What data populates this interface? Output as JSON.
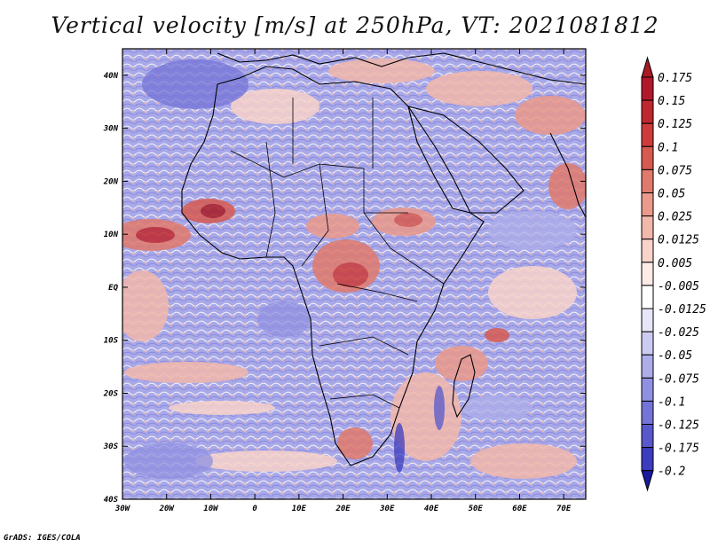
{
  "title": "Vertical velocity [m/s] at 250hPa, VT: 2021081812",
  "footer": "GrADS: IGES/COLA",
  "map": {
    "type": "filled-contour-map",
    "variable": "Vertical velocity",
    "units": "m/s",
    "level": "250hPa",
    "valid_time": "2021081812",
    "lat_range": [
      -40,
      45
    ],
    "lon_range": [
      -30,
      75
    ],
    "lat_ticks": [
      "40N",
      "30N",
      "20N",
      "10N",
      "EQ",
      "10S",
      "20S",
      "30S",
      "40S"
    ],
    "lon_ticks": [
      "30W",
      "20W",
      "10W",
      "0",
      "10E",
      "20E",
      "30E",
      "40E",
      "50E",
      "60E",
      "70E"
    ]
  },
  "colorbar": {
    "levels": [
      {
        "label": "0.175",
        "color": "#b2182b"
      },
      {
        "label": "0.15",
        "color": "#c0282f"
      },
      {
        "label": "0.125",
        "color": "#cc3c3a"
      },
      {
        "label": "0.1",
        "color": "#d65a50"
      },
      {
        "label": "0.075",
        "color": "#e07a6c"
      },
      {
        "label": "0.05",
        "color": "#ea998b"
      },
      {
        "label": "0.025",
        "color": "#f2b8ab"
      },
      {
        "label": "0.0125",
        "color": "#f8d3ca"
      },
      {
        "label": "0.005",
        "color": "#fcebe6"
      },
      {
        "label": "-0.005",
        "color": "#ffffff"
      },
      {
        "label": "-0.0125",
        "color": "#e6e6f8"
      },
      {
        "label": "-0.025",
        "color": "#cbcbf2"
      },
      {
        "label": "-0.05",
        "color": "#adadea"
      },
      {
        "label": "-0.075",
        "color": "#9090e2"
      },
      {
        "label": "-0.1",
        "color": "#7474d8"
      },
      {
        "label": "-0.125",
        "color": "#5858cc"
      },
      {
        "label": "-0.175",
        "color": "#3c3cbe"
      },
      {
        "label": "-0.2",
        "color": "#2424ae"
      }
    ],
    "top_color": "#a81a24",
    "bottom_color": "#1a1a9e"
  }
}
